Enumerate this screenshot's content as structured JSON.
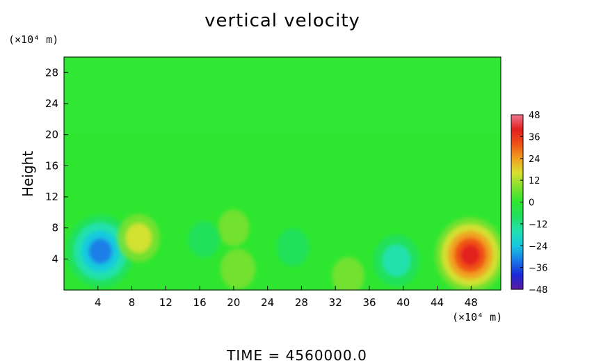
{
  "chart_data": {
    "type": "heatmap",
    "title": "vertical velocity",
    "ylabel": "Height",
    "xlabel": "",
    "x_unit": "(×10⁴ m)",
    "y_unit": "(×10⁴ m)",
    "x_ticks": [
      4,
      8,
      12,
      16,
      20,
      24,
      28,
      32,
      36,
      40,
      44,
      48
    ],
    "y_ticks": [
      4,
      8,
      12,
      16,
      20,
      24,
      28
    ],
    "xlim": [
      0,
      51.5
    ],
    "ylim": [
      0,
      30
    ],
    "colorbar": {
      "ticks": [
        48,
        36,
        24,
        12,
        0,
        -12,
        -24,
        -36,
        -48
      ],
      "min": -48,
      "max": 48,
      "colors": [
        "#5a1aa0",
        "#1a2ad8",
        "#1a7ae8",
        "#18c8e0",
        "#22e0b0",
        "#22e060",
        "#2ee630",
        "#7ee030",
        "#d8e030",
        "#f0a020",
        "#f05018",
        "#e02020",
        "#f07890"
      ]
    },
    "features": [
      {
        "x": 4.3,
        "y": 5.0,
        "value": -34
      },
      {
        "x": 8.8,
        "y": 6.7,
        "value": 14
      },
      {
        "x": 20.5,
        "y": 2.7,
        "value": 8
      },
      {
        "x": 20.0,
        "y": 8.0,
        "value": 5
      },
      {
        "x": 33.5,
        "y": 1.8,
        "value": 6
      },
      {
        "x": 39.2,
        "y": 3.8,
        "value": -17
      },
      {
        "x": 16.5,
        "y": 6.5,
        "value": -5
      },
      {
        "x": 27.0,
        "y": 5.5,
        "value": -6
      },
      {
        "x": 47.9,
        "y": 4.5,
        "value": 36
      }
    ],
    "grid": false
  },
  "footer": {
    "time_label": "TIME  =  4560000.0"
  }
}
